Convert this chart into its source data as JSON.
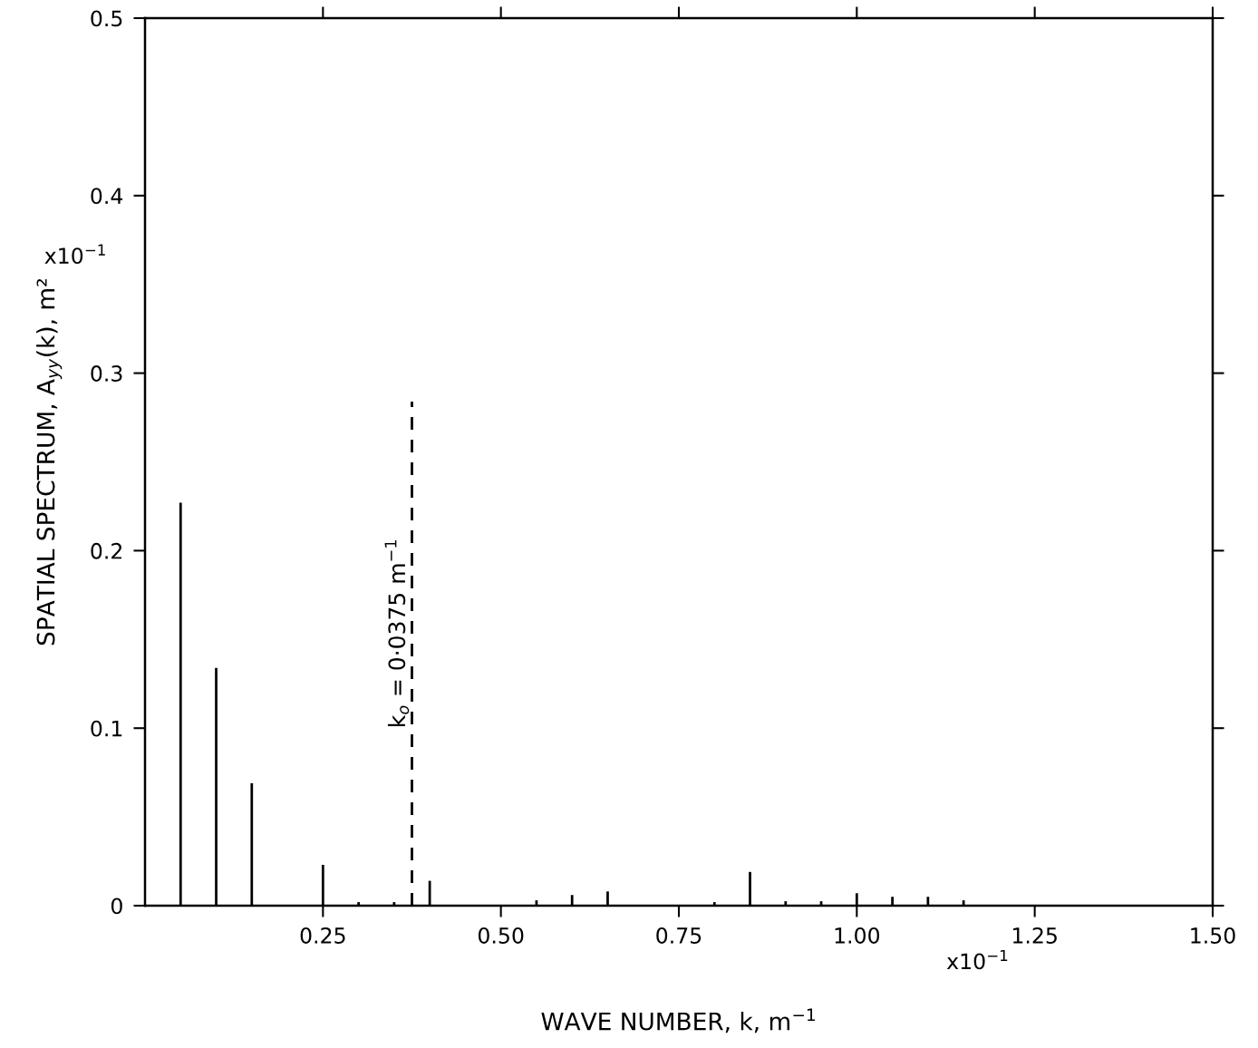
{
  "chart_data": {
    "type": "bar",
    "xlabel": "WAVE NUMBER, k, m$^{−1}$",
    "ylabel": "SPATIAL SPECTRUM, A$_{yy}$(k), m²",
    "x": [
      0.05,
      0.1,
      0.15,
      0.2,
      0.25,
      0.3,
      0.35,
      0.4,
      0.45,
      0.55,
      0.6,
      0.65,
      0.8,
      0.85,
      0.9,
      0.95,
      1.0,
      1.05,
      1.1,
      1.15
    ],
    "values": [
      0.227,
      0.134,
      0.069,
      null,
      0.023,
      0.002,
      0.002,
      0.014,
      null,
      0.003,
      0.006,
      0.008,
      0.002,
      0.019,
      0.0025,
      0.0025,
      0.007,
      0.005,
      0.005,
      0.003
    ],
    "color": "#000000",
    "xlim": [
      0,
      1.5
    ],
    "ylim": [
      0,
      0.5
    ],
    "xticks": [
      0.25,
      {
        "value": 0.5,
        "label": "0.50"
      },
      0.75,
      {
        "value": 1.0,
        "label": "1.00"
      },
      1.25,
      {
        "value": 1.5,
        "label": "1.50"
      }
    ],
    "yticks": [
      0,
      0.1,
      0.2,
      0.3,
      0.4,
      0.5
    ],
    "ref_lines": [
      {
        "axis": "x",
        "value": 0.375,
        "label": "k$_{o}$ = 0·0375 m$^{−1}$",
        "line_style": "dashed",
        "color": "#000000"
      }
    ],
    "annotations": [
      "x10$^{−1}$",
      "x10$^{−1}$"
    ],
    "grid": false
  }
}
